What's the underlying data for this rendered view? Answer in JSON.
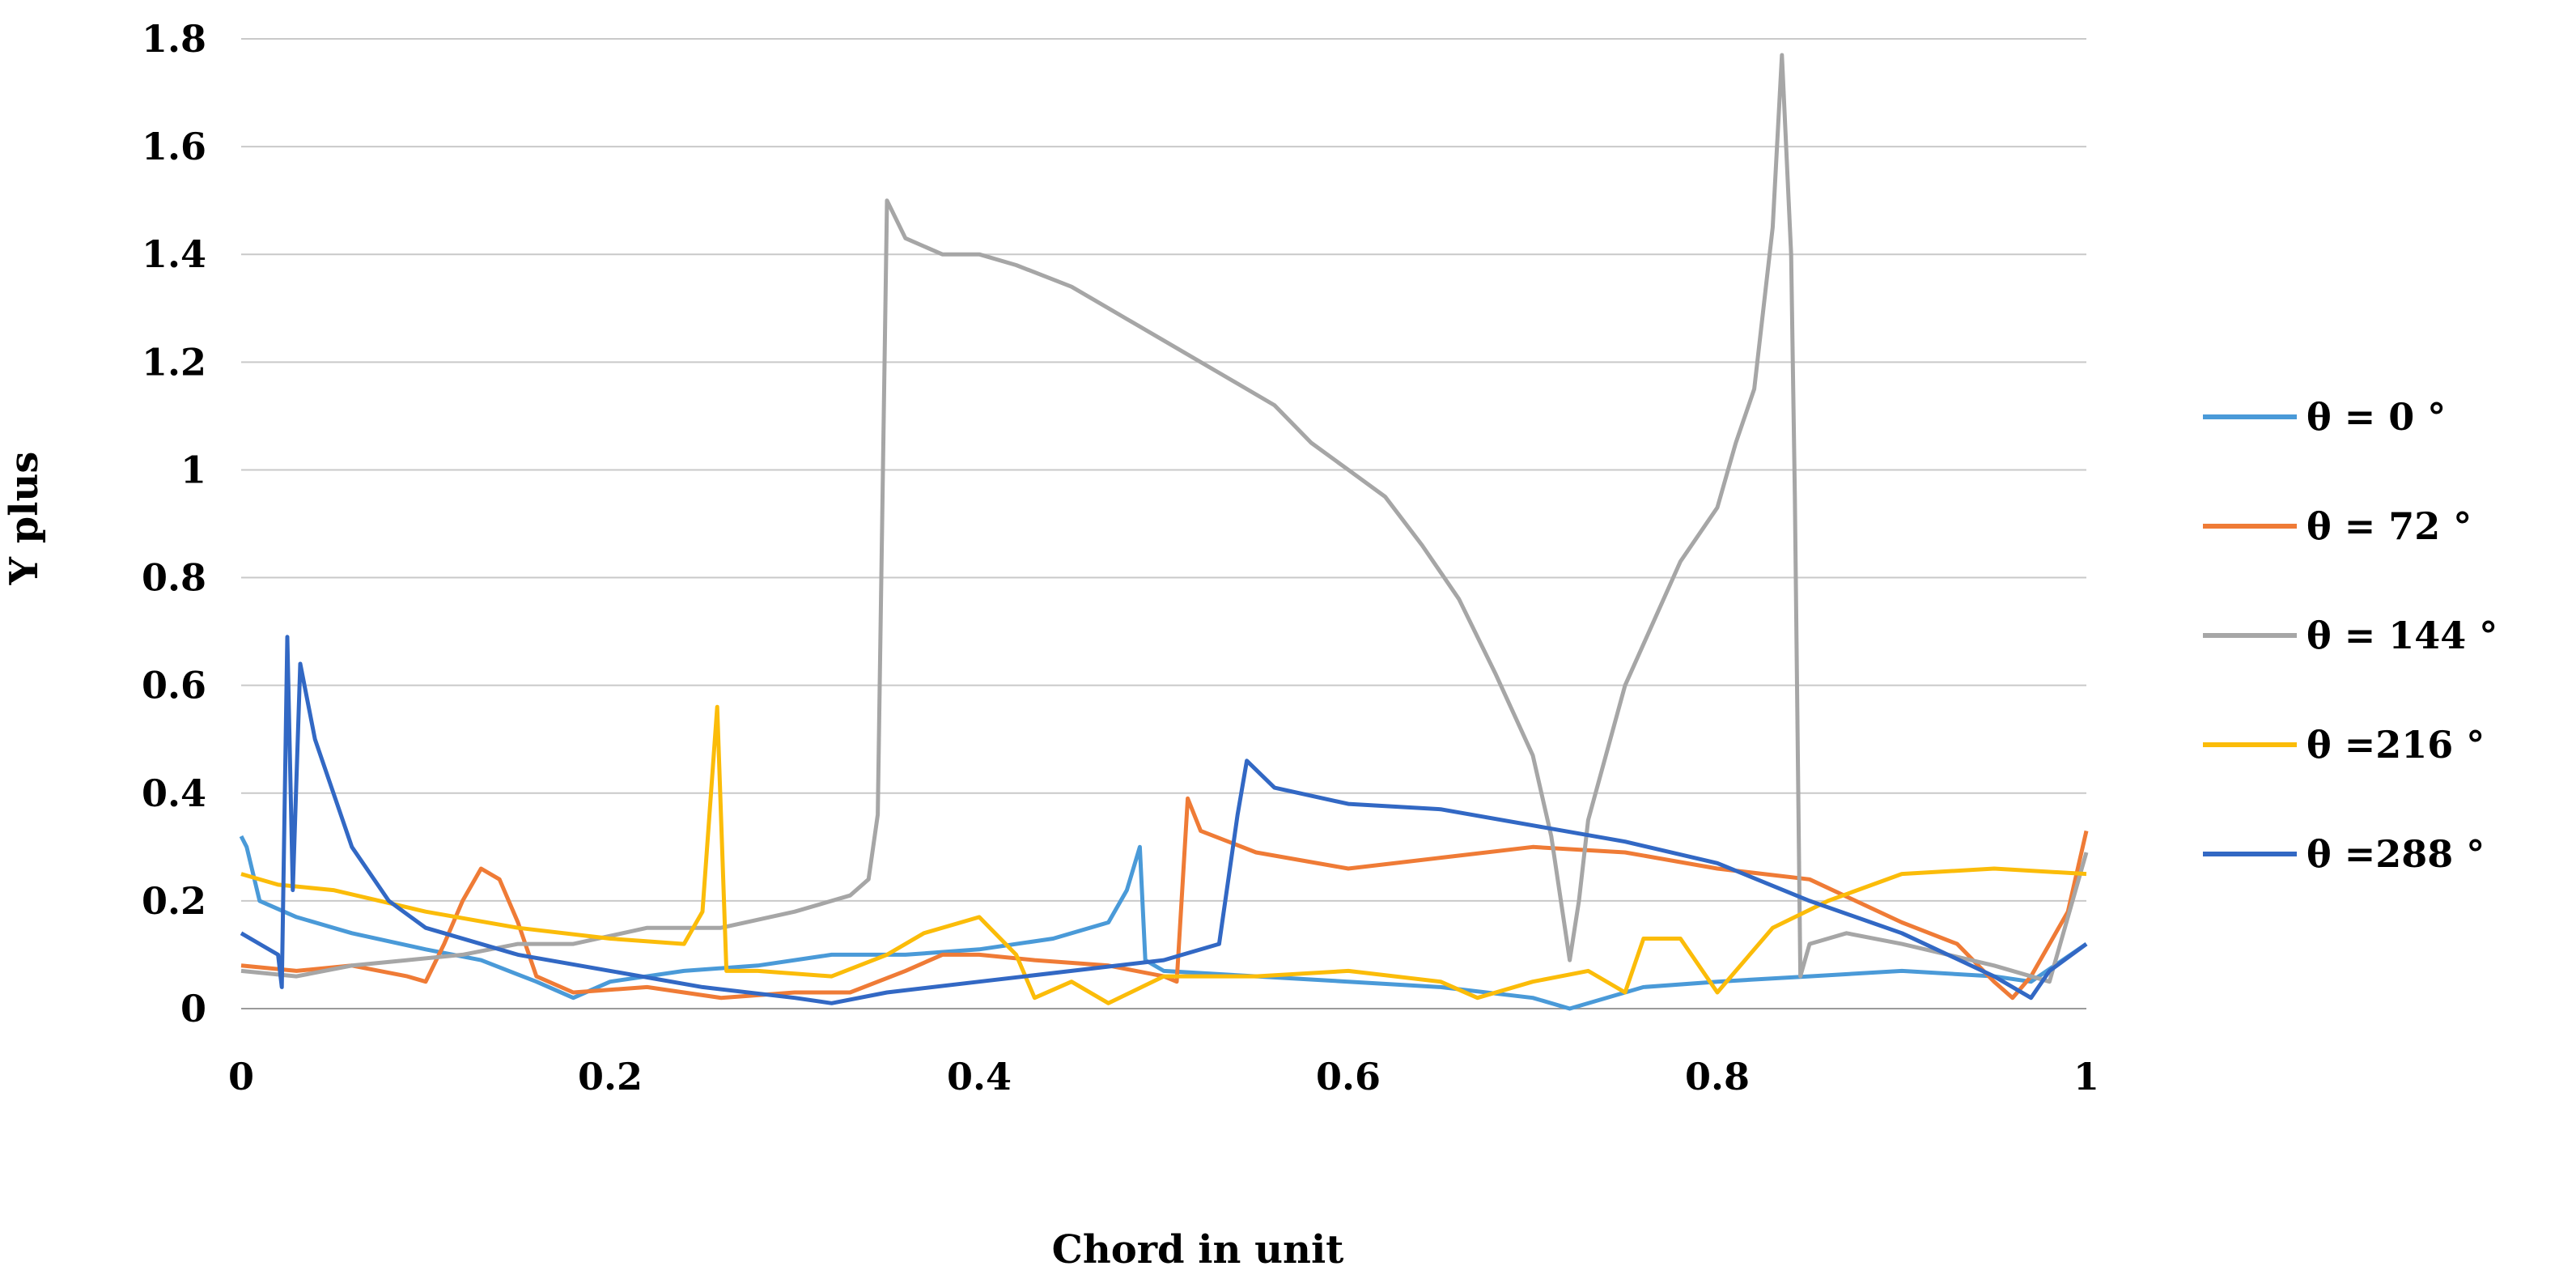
{
  "chart_data": {
    "type": "line",
    "title": "",
    "xlabel": "Chord in unit",
    "ylabel": "Y plus",
    "xlim": [
      0,
      1
    ],
    "ylim": [
      0,
      1.8
    ],
    "x_ticks": [
      "0",
      "0.2",
      "0.4",
      "0.6",
      "0.8",
      "1"
    ],
    "y_ticks": [
      "0",
      "0.2",
      "0.4",
      "0.6",
      "0.8",
      "1",
      "1.2",
      "1.4",
      "1.6",
      "1.8"
    ],
    "grid": "horizontal",
    "legend_position": "right",
    "series": [
      {
        "name": "θ = 0 °",
        "color": "#4a9ad8",
        "points": [
          [
            0,
            0.32
          ],
          [
            0.003,
            0.3
          ],
          [
            0.01,
            0.2
          ],
          [
            0.03,
            0.17
          ],
          [
            0.06,
            0.14
          ],
          [
            0.1,
            0.11
          ],
          [
            0.13,
            0.09
          ],
          [
            0.16,
            0.05
          ],
          [
            0.18,
            0.02
          ],
          [
            0.2,
            0.05
          ],
          [
            0.24,
            0.07
          ],
          [
            0.28,
            0.08
          ],
          [
            0.32,
            0.1
          ],
          [
            0.36,
            0.1
          ],
          [
            0.4,
            0.11
          ],
          [
            0.44,
            0.13
          ],
          [
            0.47,
            0.16
          ],
          [
            0.48,
            0.22
          ],
          [
            0.487,
            0.3
          ],
          [
            0.49,
            0.09
          ],
          [
            0.5,
            0.07
          ],
          [
            0.55,
            0.06
          ],
          [
            0.6,
            0.05
          ],
          [
            0.65,
            0.04
          ],
          [
            0.7,
            0.02
          ],
          [
            0.72,
            0.0
          ],
          [
            0.76,
            0.04
          ],
          [
            0.8,
            0.05
          ],
          [
            0.85,
            0.06
          ],
          [
            0.9,
            0.07
          ],
          [
            0.95,
            0.06
          ],
          [
            0.97,
            0.05
          ],
          [
            1,
            0.12
          ]
        ]
      },
      {
        "name": "θ = 72 °",
        "color": "#ef7b36",
        "points": [
          [
            0,
            0.08
          ],
          [
            0.03,
            0.07
          ],
          [
            0.06,
            0.08
          ],
          [
            0.09,
            0.06
          ],
          [
            0.1,
            0.05
          ],
          [
            0.11,
            0.12
          ],
          [
            0.12,
            0.2
          ],
          [
            0.13,
            0.26
          ],
          [
            0.14,
            0.24
          ],
          [
            0.15,
            0.16
          ],
          [
            0.16,
            0.06
          ],
          [
            0.18,
            0.03
          ],
          [
            0.22,
            0.04
          ],
          [
            0.26,
            0.02
          ],
          [
            0.3,
            0.03
          ],
          [
            0.33,
            0.03
          ],
          [
            0.36,
            0.07
          ],
          [
            0.38,
            0.1
          ],
          [
            0.4,
            0.1
          ],
          [
            0.43,
            0.09
          ],
          [
            0.47,
            0.08
          ],
          [
            0.5,
            0.06
          ],
          [
            0.507,
            0.05
          ],
          [
            0.513,
            0.39
          ],
          [
            0.52,
            0.33
          ],
          [
            0.55,
            0.29
          ],
          [
            0.6,
            0.26
          ],
          [
            0.65,
            0.28
          ],
          [
            0.7,
            0.3
          ],
          [
            0.75,
            0.29
          ],
          [
            0.8,
            0.26
          ],
          [
            0.85,
            0.24
          ],
          [
            0.9,
            0.16
          ],
          [
            0.93,
            0.12
          ],
          [
            0.95,
            0.05
          ],
          [
            0.96,
            0.02
          ],
          [
            0.97,
            0.06
          ],
          [
            0.99,
            0.18
          ],
          [
            1,
            0.33
          ]
        ]
      },
      {
        "name": "θ = 144 °",
        "color": "#a6a6a6",
        "points": [
          [
            0,
            0.07
          ],
          [
            0.03,
            0.06
          ],
          [
            0.06,
            0.08
          ],
          [
            0.09,
            0.09
          ],
          [
            0.12,
            0.1
          ],
          [
            0.15,
            0.12
          ],
          [
            0.18,
            0.12
          ],
          [
            0.22,
            0.15
          ],
          [
            0.26,
            0.15
          ],
          [
            0.3,
            0.18
          ],
          [
            0.33,
            0.21
          ],
          [
            0.34,
            0.24
          ],
          [
            0.345,
            0.36
          ],
          [
            0.35,
            1.5
          ],
          [
            0.36,
            1.43
          ],
          [
            0.38,
            1.4
          ],
          [
            0.4,
            1.4
          ],
          [
            0.42,
            1.38
          ],
          [
            0.45,
            1.34
          ],
          [
            0.48,
            1.28
          ],
          [
            0.5,
            1.24
          ],
          [
            0.53,
            1.18
          ],
          [
            0.56,
            1.12
          ],
          [
            0.58,
            1.05
          ],
          [
            0.6,
            1.0
          ],
          [
            0.62,
            0.95
          ],
          [
            0.64,
            0.86
          ],
          [
            0.66,
            0.76
          ],
          [
            0.68,
            0.62
          ],
          [
            0.7,
            0.47
          ],
          [
            0.71,
            0.32
          ],
          [
            0.72,
            0.09
          ],
          [
            0.725,
            0.2
          ],
          [
            0.73,
            0.35
          ],
          [
            0.75,
            0.6
          ],
          [
            0.78,
            0.83
          ],
          [
            0.8,
            0.93
          ],
          [
            0.81,
            1.05
          ],
          [
            0.82,
            1.15
          ],
          [
            0.83,
            1.45
          ],
          [
            0.835,
            1.77
          ],
          [
            0.84,
            1.4
          ],
          [
            0.842,
            0.95
          ],
          [
            0.845,
            0.06
          ],
          [
            0.85,
            0.12
          ],
          [
            0.87,
            0.14
          ],
          [
            0.9,
            0.12
          ],
          [
            0.95,
            0.08
          ],
          [
            0.98,
            0.05
          ],
          [
            1,
            0.29
          ]
        ]
      },
      {
        "name": "θ =216 °",
        "color": "#fbbc09",
        "points": [
          [
            0,
            0.25
          ],
          [
            0.02,
            0.23
          ],
          [
            0.05,
            0.22
          ],
          [
            0.1,
            0.18
          ],
          [
            0.15,
            0.15
          ],
          [
            0.2,
            0.13
          ],
          [
            0.24,
            0.12
          ],
          [
            0.25,
            0.18
          ],
          [
            0.258,
            0.56
          ],
          [
            0.263,
            0.07
          ],
          [
            0.28,
            0.07
          ],
          [
            0.32,
            0.06
          ],
          [
            0.35,
            0.1
          ],
          [
            0.37,
            0.14
          ],
          [
            0.4,
            0.17
          ],
          [
            0.42,
            0.1
          ],
          [
            0.43,
            0.02
          ],
          [
            0.45,
            0.05
          ],
          [
            0.47,
            0.01
          ],
          [
            0.5,
            0.06
          ],
          [
            0.55,
            0.06
          ],
          [
            0.6,
            0.07
          ],
          [
            0.65,
            0.05
          ],
          [
            0.67,
            0.02
          ],
          [
            0.7,
            0.05
          ],
          [
            0.73,
            0.07
          ],
          [
            0.75,
            0.03
          ],
          [
            0.76,
            0.13
          ],
          [
            0.78,
            0.13
          ],
          [
            0.8,
            0.03
          ],
          [
            0.83,
            0.15
          ],
          [
            0.86,
            0.2
          ],
          [
            0.9,
            0.25
          ],
          [
            0.95,
            0.26
          ],
          [
            1,
            0.25
          ]
        ]
      },
      {
        "name": "θ =288 °",
        "color": "#3268c4",
        "points": [
          [
            0,
            0.14
          ],
          [
            0.01,
            0.12
          ],
          [
            0.02,
            0.1
          ],
          [
            0.022,
            0.04
          ],
          [
            0.025,
            0.69
          ],
          [
            0.028,
            0.22
          ],
          [
            0.032,
            0.64
          ],
          [
            0.04,
            0.5
          ],
          [
            0.06,
            0.3
          ],
          [
            0.08,
            0.2
          ],
          [
            0.1,
            0.15
          ],
          [
            0.15,
            0.1
          ],
          [
            0.2,
            0.07
          ],
          [
            0.25,
            0.04
          ],
          [
            0.3,
            0.02
          ],
          [
            0.32,
            0.01
          ],
          [
            0.35,
            0.03
          ],
          [
            0.4,
            0.05
          ],
          [
            0.45,
            0.07
          ],
          [
            0.5,
            0.09
          ],
          [
            0.53,
            0.12
          ],
          [
            0.54,
            0.36
          ],
          [
            0.545,
            0.46
          ],
          [
            0.56,
            0.41
          ],
          [
            0.6,
            0.38
          ],
          [
            0.65,
            0.37
          ],
          [
            0.7,
            0.34
          ],
          [
            0.75,
            0.31
          ],
          [
            0.8,
            0.27
          ],
          [
            0.85,
            0.2
          ],
          [
            0.9,
            0.14
          ],
          [
            0.95,
            0.06
          ],
          [
            0.97,
            0.02
          ],
          [
            0.98,
            0.07
          ],
          [
            1,
            0.12
          ]
        ]
      }
    ]
  }
}
